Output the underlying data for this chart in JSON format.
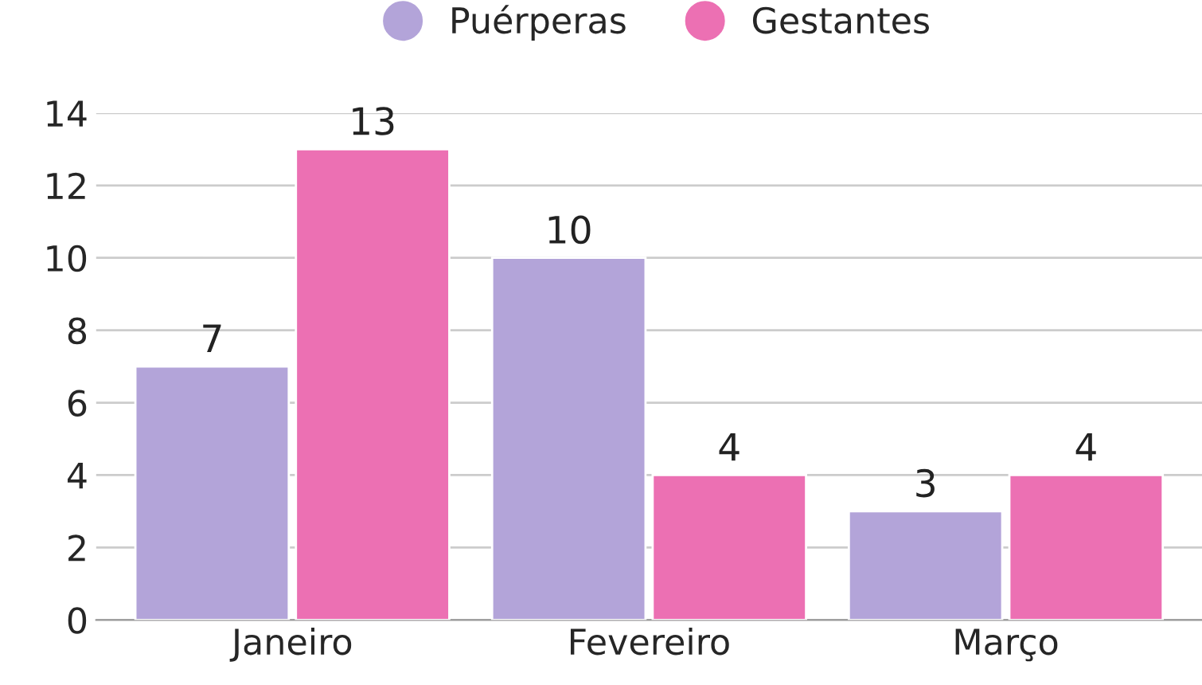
{
  "chart_data": {
    "type": "bar",
    "categories": [
      "Janeiro",
      "Fevereiro",
      "Março"
    ],
    "series": [
      {
        "name": "Puérperas",
        "color": "#b3a4d9",
        "values": [
          7,
          10,
          3
        ]
      },
      {
        "name": "Gestantes",
        "color": "#ec70b3",
        "values": [
          13,
          4,
          4
        ]
      }
    ],
    "ylim": [
      0,
      14
    ],
    "yticks": [
      0,
      2,
      4,
      6,
      8,
      10,
      12,
      14
    ],
    "grid": "y",
    "legend": "top",
    "data_labels": true
  }
}
